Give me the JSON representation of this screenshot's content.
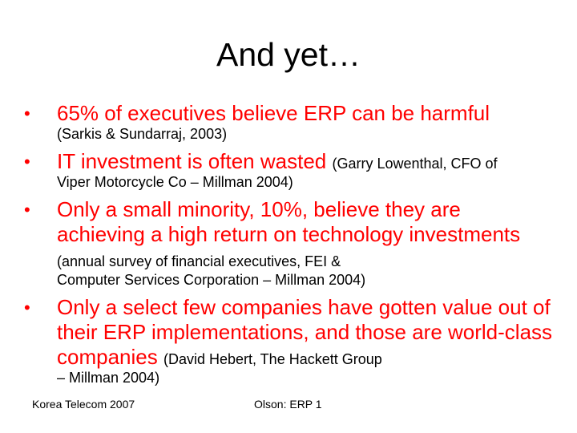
{
  "title": "And yet…",
  "bullets": [
    {
      "marker": "•",
      "text": "65% of executives believe ERP can be harmful",
      "cite_inline": "",
      "cite_line": "(Sarkis & Sundarraj, 2003)"
    },
    {
      "marker": "•",
      "text": "IT investment is often wasted ",
      "cite_inline": "(Garry Lowenthal, CFO of",
      "cite_line": "Viper Motorcycle Co – Millman 2004)"
    },
    {
      "marker": "•",
      "text": "Only a small minority, 10%, believe they are achieving a high return on technology investments ",
      "cite_inline": "(annual survey of financial executives, FEI &",
      "cite_line": "Computer Services Corporation – Millman 2004)"
    },
    {
      "marker": "•",
      "text": "Only a select few companies have gotten value out of their ERP implementations, and those are world-class companies ",
      "cite_inline": "(David Hebert, The Hackett Group",
      "cite_line": "– Millman 2004)"
    }
  ],
  "footer": {
    "left": "Korea Telecom 2007",
    "center": "Olson: ERP 1"
  },
  "colors": {
    "bullet_text": "#ff0000",
    "body_text": "#000000",
    "background": "#ffffff"
  }
}
